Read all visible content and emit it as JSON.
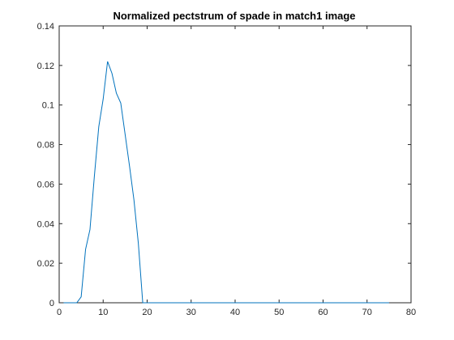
{
  "chart_data": {
    "type": "line",
    "title": "Normalized pectstrum of spade in match1 image",
    "xlabel": "",
    "ylabel": "",
    "xlim": [
      0,
      80
    ],
    "ylim": [
      0,
      0.14
    ],
    "x_ticks": [
      0,
      10,
      20,
      30,
      40,
      50,
      60,
      70,
      80
    ],
    "y_ticks": [
      0,
      0.02,
      0.04,
      0.06,
      0.08,
      0.1,
      0.12,
      0.14
    ],
    "x_tick_labels": [
      "0",
      "10",
      "20",
      "30",
      "40",
      "50",
      "60",
      "70",
      "80"
    ],
    "y_tick_labels": [
      "0",
      "0.02",
      "0.04",
      "0.06",
      "0.08",
      "0.1",
      "0.12",
      "0.14"
    ],
    "grid": false,
    "series": [
      {
        "color": "#0072BD",
        "x": [
          1,
          2,
          3,
          4,
          5,
          6,
          7,
          8,
          9,
          10,
          11,
          12,
          13,
          14,
          15,
          16,
          17,
          18,
          19,
          20,
          21,
          22,
          23,
          24,
          25,
          30,
          35,
          40,
          45,
          50,
          55,
          60,
          65,
          70,
          75
        ],
        "y": [
          0,
          0,
          0,
          0,
          0.003,
          0.027,
          0.037,
          0.064,
          0.089,
          0.103,
          0.122,
          0.116,
          0.106,
          0.101,
          0.085,
          0.069,
          0.052,
          0.03,
          0,
          0,
          0,
          0,
          0,
          0,
          0,
          0,
          0,
          0,
          0,
          0,
          0,
          0,
          0,
          0,
          0
        ]
      }
    ]
  }
}
